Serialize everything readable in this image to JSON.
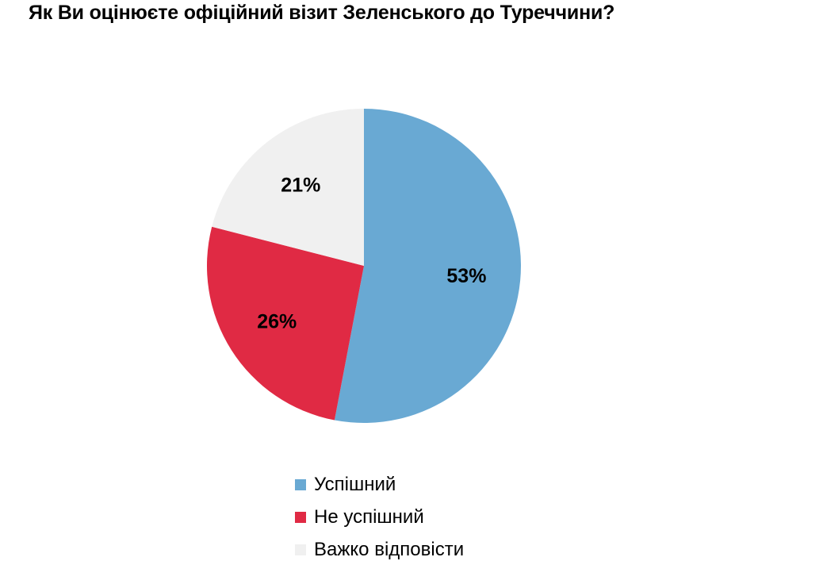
{
  "chart_data": {
    "type": "pie",
    "title": "Як Ви оцінюєте офіційний візит Зеленського до Туреччини?",
    "categories": [
      "Успішний",
      "Не успішний",
      "Важко відповісти"
    ],
    "values": [
      53,
      26,
      21
    ],
    "value_labels": [
      "53%",
      "26%",
      "21%"
    ],
    "colors": [
      "#69a9d3",
      "#e02a44",
      "#f0f0f0"
    ],
    "start": "12 o'clock",
    "direction": "clockwise",
    "legend_position": "bottom"
  }
}
